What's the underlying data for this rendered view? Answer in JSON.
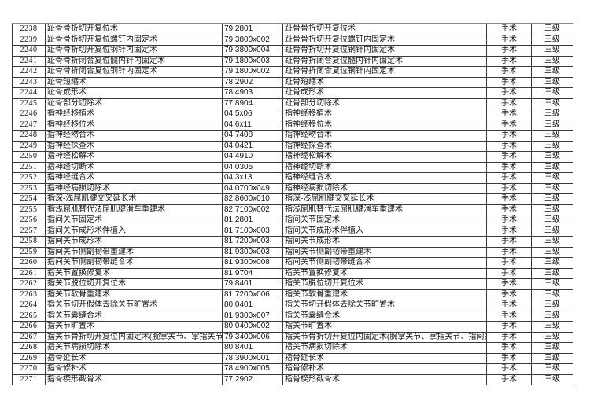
{
  "colors": {
    "background": "#ffffff",
    "border": "#3a3a3a",
    "border_top": "#8a8a8a",
    "text": "#161616"
  },
  "table": {
    "rows": [
      {
        "id": "2238",
        "name": "趾骨骨折切开复位术",
        "code": "79.2801",
        "name_repeat": "趾骨骨折切开复位术",
        "category": "手术",
        "level": "三级"
      },
      {
        "id": "2239",
        "name": "趾骨骨折切开复位螺钉内固定术",
        "code": "79.3800x002",
        "name_repeat": "趾骨骨折切开复位螺钉内固定术",
        "category": "手术",
        "level": "三级"
      },
      {
        "id": "2240",
        "name": "趾骨骨折切开复位钢针内固定术",
        "code": "79.3800x004",
        "name_repeat": "趾骨骨折切开复位钢针内固定术",
        "category": "手术",
        "level": "三级"
      },
      {
        "id": "2241",
        "name": "趾骨骨折闭合复位髓内针内固定术",
        "code": "79.1800x003",
        "name_repeat": "趾骨骨折闭合复位髓内针内固定术",
        "category": "手术",
        "level": "三级"
      },
      {
        "id": "2242",
        "name": "趾骨骨折闭合复位钢针内固定术",
        "code": "79.1800x002",
        "name_repeat": "趾骨骨折闭合复位钢针内固定术",
        "category": "手术",
        "level": "三级"
      },
      {
        "id": "2243",
        "name": "趾骨短缩术",
        "code": "78.2902",
        "name_repeat": "趾骨短缩术",
        "category": "手术",
        "level": "三级"
      },
      {
        "id": "2244",
        "name": "趾骨成形术",
        "code": "78.4903",
        "name_repeat": "趾骨成形术",
        "category": "手术",
        "level": "三级"
      },
      {
        "id": "2245",
        "name": "趾骨部分切除术",
        "code": "77.8904",
        "name_repeat": "趾骨部分切除术",
        "category": "手术",
        "level": "三级"
      },
      {
        "id": "2246",
        "name": "指神经移植术",
        "code": "04.5x06",
        "name_repeat": "指神经移植术",
        "category": "手术",
        "level": "三级"
      },
      {
        "id": "2247",
        "name": "指神经移位术",
        "code": "04.6x11",
        "name_repeat": "指神经移位术",
        "category": "手术",
        "level": "三级"
      },
      {
        "id": "2248",
        "name": "指神经吻合术",
        "code": "04.7408",
        "name_repeat": "指神经吻合术",
        "category": "手术",
        "level": "三级"
      },
      {
        "id": "2249",
        "name": "指神经探查术",
        "code": "04.0421",
        "name_repeat": "指神经探查术",
        "category": "手术",
        "level": "三级"
      },
      {
        "id": "2250",
        "name": "指神经松解术",
        "code": "04.4910",
        "name_repeat": "指神经松解术",
        "category": "手术",
        "level": "三级"
      },
      {
        "id": "2251",
        "name": "指神经切断术",
        "code": "04.0305",
        "name_repeat": "指神经切断术",
        "category": "手术",
        "level": "三级"
      },
      {
        "id": "2252",
        "name": "指神经缝合术",
        "code": "04.3x13",
        "name_repeat": "指神经缝合术",
        "category": "手术",
        "level": "三级"
      },
      {
        "id": "2253",
        "name": "指神经病损切除术",
        "code": "04.0700x049",
        "name_repeat": "指神经病损切除术",
        "category": "手术",
        "level": "三级"
      },
      {
        "id": "2254",
        "name": "指深-浅屈肌腱交叉延长术",
        "code": "82.8600x010",
        "name_repeat": "指深-浅屈肌腱交叉延长术",
        "category": "手术",
        "level": "三级"
      },
      {
        "id": "2255",
        "name": "指浅屈肌替代法屈肌腱滑车重建术",
        "code": "82.7100x002",
        "name_repeat": "指浅屈肌替代法屈肌腱滑车重建术",
        "category": "手术",
        "level": "三级"
      },
      {
        "id": "2256",
        "name": "指间关节固定术",
        "code": "81.2801",
        "name_repeat": "指间关节固定术",
        "category": "手术",
        "level": "三级"
      },
      {
        "id": "2257",
        "name": "指间关节成形术伴植入",
        "code": "81.7100x003",
        "name_repeat": "指间关节成形术伴植入",
        "category": "手术",
        "level": "三级"
      },
      {
        "id": "2258",
        "name": "指间关节成形术",
        "code": "81.7200x003",
        "name_repeat": "指间关节成形术",
        "category": "手术",
        "level": "三级"
      },
      {
        "id": "2259",
        "name": "指间关节侧副韧带重建术",
        "code": "81.9300x003",
        "name_repeat": "指间关节侧副韧带重建术",
        "category": "手术",
        "level": "三级"
      },
      {
        "id": "2260",
        "name": "指间关节侧副韧带缝合术",
        "code": "81.9300x008",
        "name_repeat": "指间关节侧副韧带缝合术",
        "category": "手术",
        "level": "三级"
      },
      {
        "id": "2261",
        "name": "指关节置换修复术",
        "code": "81.9704",
        "name_repeat": "指关节置换修复术",
        "category": "手术",
        "level": "三级"
      },
      {
        "id": "2262",
        "name": "指关节脱位切开复位术",
        "code": "79.8401",
        "name_repeat": "指关节脱位切开复位术",
        "category": "手术",
        "level": "三级"
      },
      {
        "id": "2263",
        "name": "指关节软骨重建术",
        "code": "81.7200x006",
        "name_repeat": "指关节软骨重建术",
        "category": "手术",
        "level": "三级"
      },
      {
        "id": "2264",
        "name": "指关节切开假体去除关节旷置术",
        "code": "80.0401",
        "name_repeat": "指关节切开假体去除关节旷置术",
        "category": "手术",
        "level": "三级"
      },
      {
        "id": "2265",
        "name": "指关节囊缝合术",
        "code": "81.9300x007",
        "name_repeat": "指关节囊缝合术",
        "category": "手术",
        "level": "三级"
      },
      {
        "id": "2266",
        "name": "指关节旷置术",
        "code": "80.0400x002",
        "name_repeat": "指关节旷置术",
        "category": "手术",
        "level": "三级"
      },
      {
        "id": "2267",
        "name": "指关节骨折切开复位内固定术(腕掌关节、掌指关节、指间关节)",
        "code": "79.3400x006",
        "name_repeat": "指关节骨折切开复位内固定术(腕掌关节、掌指关节、指间关节)",
        "category": "手术",
        "level": "三级"
      },
      {
        "id": "2268",
        "name": "指关节病损切除术",
        "code": "80.8401",
        "name_repeat": "指关节病损切除术",
        "category": "手术",
        "level": "三级"
      },
      {
        "id": "2269",
        "name": "指骨延长术",
        "code": "78.3900x001",
        "name_repeat": "指骨延长术",
        "category": "手术",
        "level": "三级"
      },
      {
        "id": "2270",
        "name": "指骨修补术",
        "code": "78.4900x005",
        "name_repeat": "指骨修补术",
        "category": "手术",
        "level": "三级"
      },
      {
        "id": "2271",
        "name": "指骨楔形截骨术",
        "code": "77.2902",
        "name_repeat": "指骨楔形截骨术",
        "category": "手术",
        "level": "三级"
      }
    ]
  }
}
